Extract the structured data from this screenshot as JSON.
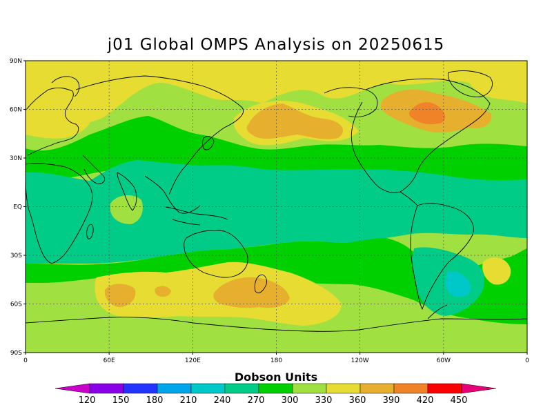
{
  "title": "j01 Global OMPS Analysis on 20250615",
  "lat_labels": [
    "90N",
    "60N",
    "30N",
    "EQ",
    "30S",
    "60S",
    "90S"
  ],
  "lon_labels": [
    "0",
    "60E",
    "120E",
    "180",
    "120W",
    "60W",
    "0"
  ],
  "colorbar": {
    "label": "Dobson Units",
    "ticks": [
      "120",
      "150",
      "180",
      "210",
      "240",
      "270",
      "300",
      "330",
      "360",
      "390",
      "420",
      "450"
    ],
    "colors": [
      "#cc00cc",
      "#8a00e6",
      "#2233ff",
      "#00a4e8",
      "#00c8c8",
      "#00cc88",
      "#00d000",
      "#a0e040",
      "#e6dc32",
      "#e6af2d",
      "#f08228",
      "#fa0000",
      "#e6007a"
    ]
  },
  "map_colors": {
    "base": "#a0e040",
    "yellow": "#e6dc32",
    "green": "#00d000",
    "teal": "#00cc88",
    "cyan": "#00c8c8",
    "orange": "#e6af2d",
    "darkorange": "#f08228",
    "coast": "#000000",
    "grid": "#555555"
  }
}
